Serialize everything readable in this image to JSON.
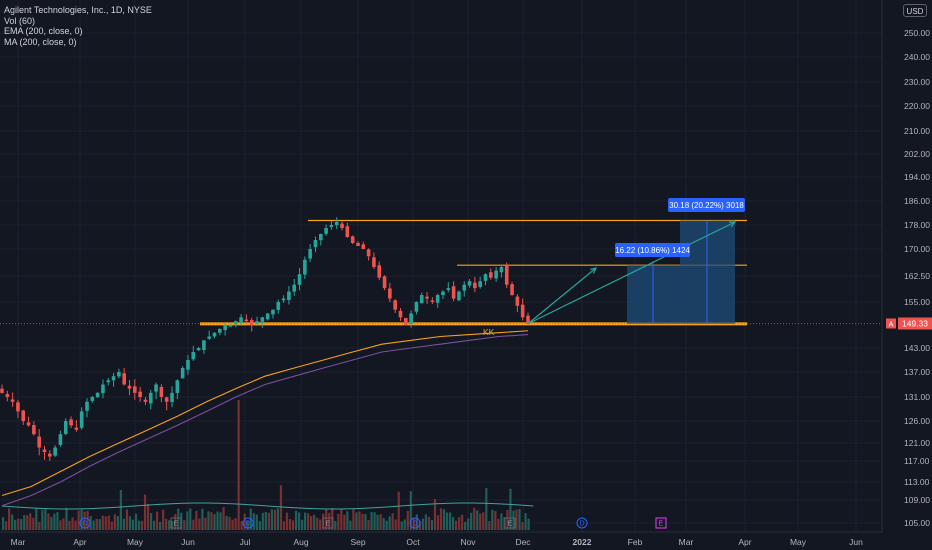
{
  "legend": {
    "title": "Agilent Technologies, Inc., 1D, NYSE",
    "vol": "Vol (60)",
    "ema": "EMA (200, close, 0)",
    "ma": "MA (200, close, 0)"
  },
  "currency": "USD",
  "y_axis_labels": [
    "250.00",
    "240.00",
    "230.00",
    "220.00",
    "210.00",
    "202.00",
    "194.00",
    "186.00",
    "178.00",
    "170.00",
    "162.50",
    "155.00",
    "143.00",
    "137.00",
    "131.00",
    "126.00",
    "121.00",
    "117.00",
    "113.00",
    "109.00",
    "105.00"
  ],
  "x_axis_labels": [
    "Mar",
    "Apr",
    "May",
    "Jun",
    "Jul",
    "Aug",
    "Sep",
    "Oct",
    "Nov",
    "Dec",
    "2022",
    "Feb",
    "Mar",
    "Apr",
    "May",
    "Jun"
  ],
  "last_price": {
    "symbol": "A",
    "value": "149.33"
  },
  "annotation_kk": "KK",
  "measure_1": "16.22 (10.86%) 1424",
  "measure_2": "30.18 (20.22%) 3018",
  "events": [
    "D",
    "E",
    "D",
    "E",
    "D",
    "E",
    "D",
    "E",
    "D",
    "E"
  ],
  "colors": {
    "background": "#131722",
    "up": "#26a69a",
    "down": "#ef5350",
    "ema": "#f7a21b",
    "ma": "#7b4f9e",
    "level": "#f7a21b",
    "arrow": "#26a69a",
    "measure_fill": "#1e4d7a",
    "label_bg": "#2962ff"
  },
  "chart_data": {
    "type": "candlestick",
    "symbol": "Agilent Technologies, Inc.",
    "interval": "1D",
    "exchange": "NYSE",
    "last_price": 149.33,
    "price_range": [
      103,
      258
    ],
    "time_range": [
      "Mar 2021",
      "Jun 2022"
    ],
    "horizontal_levels": [
      179.5,
      165.5,
      149.3
    ],
    "closes": [
      132,
      131,
      130,
      128,
      126,
      125,
      123,
      120,
      119,
      118,
      120,
      123,
      126,
      125,
      124,
      128,
      130,
      131,
      132,
      134,
      135,
      136,
      137,
      134,
      133,
      132,
      131,
      130,
      132,
      134,
      131,
      130,
      132,
      135,
      138,
      140,
      142,
      143,
      145,
      146,
      147,
      148,
      149,
      149,
      150,
      151,
      150,
      149,
      150,
      151,
      152,
      153,
      155,
      156,
      158,
      160,
      163,
      167,
      170,
      173,
      175,
      177,
      178,
      179,
      177,
      174,
      172,
      171,
      170,
      168,
      165,
      162,
      159,
      156,
      153,
      151,
      149,
      152,
      155,
      157,
      156,
      155,
      157,
      158,
      159,
      156,
      158,
      160,
      161,
      159,
      161,
      163,
      162,
      164,
      165,
      160,
      157,
      154,
      151,
      149.3
    ],
    "ema200": [
      110,
      112,
      115,
      118,
      121,
      124,
      127,
      130,
      133,
      136,
      138,
      140,
      142,
      144,
      145,
      146,
      146.5,
      147,
      147.5
    ],
    "ma200": [
      108,
      110,
      113,
      116,
      119,
      122,
      125,
      128,
      131,
      134,
      136,
      138,
      140,
      142,
      143,
      144,
      145,
      146,
      146.5
    ]
  }
}
